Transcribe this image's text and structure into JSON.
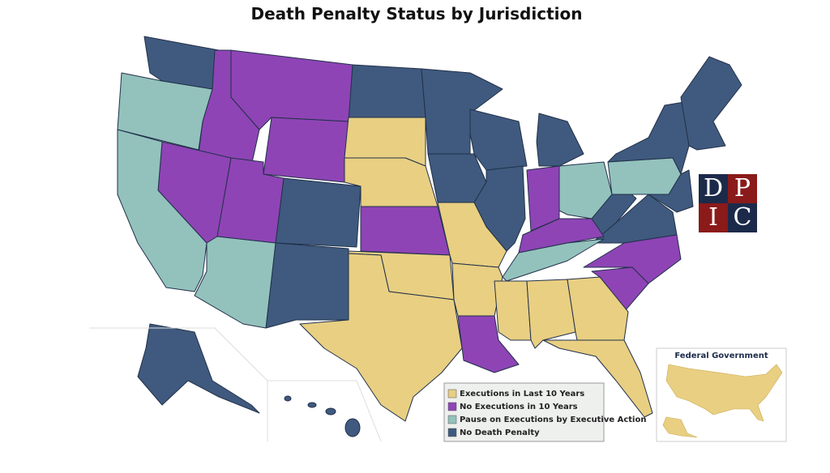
{
  "title": "Death Penalty Status by Jurisdiction",
  "legend": {
    "items": [
      {
        "label": "Executions in Last 10 Years",
        "color": "#e8cf82"
      },
      {
        "label": "No Executions in 10 Years",
        "color": "#8e44b5"
      },
      {
        "label": "Pause on Executions by Executive Action",
        "color": "#93c2bd"
      },
      {
        "label": "No Death Penalty",
        "color": "#3f5a7e"
      }
    ]
  },
  "federal": {
    "label": "Federal Government"
  },
  "logo": {
    "letters": [
      "D",
      "P",
      "I",
      "C"
    ]
  }
}
